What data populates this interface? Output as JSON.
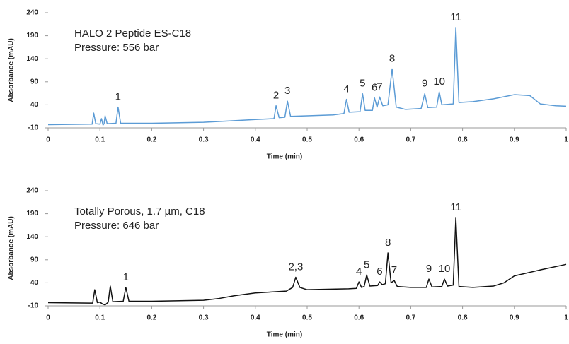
{
  "chart_data": [
    {
      "type": "line",
      "annotations": [
        "HALO 2 Peptide ES-C18",
        "Pressure: 556 bar"
      ],
      "x_label": "Time (min)",
      "y_label": "Absorbance (mAU)",
      "xlim": [
        0,
        1
      ],
      "ylim": [
        -10,
        240
      ],
      "xticks": [
        0,
        0.1,
        0.2,
        0.3,
        0.4,
        0.5,
        0.6,
        0.7,
        0.8,
        0.9,
        1
      ],
      "yticks": [
        -10,
        40,
        90,
        140,
        190,
        240
      ],
      "x": [
        0,
        0.08,
        0.085,
        0.088,
        0.092,
        0.1,
        0.103,
        0.106,
        0.108,
        0.11,
        0.114,
        0.131,
        0.135,
        0.14,
        0.2,
        0.3,
        0.35,
        0.4,
        0.436,
        0.44,
        0.446,
        0.457,
        0.462,
        0.468,
        0.5,
        0.55,
        0.571,
        0.576,
        0.581,
        0.602,
        0.607,
        0.612,
        0.626,
        0.63,
        0.635,
        0.64,
        0.646,
        0.656,
        0.664,
        0.672,
        0.69,
        0.72,
        0.727,
        0.733,
        0.75,
        0.755,
        0.76,
        0.782,
        0.787,
        0.793,
        0.82,
        0.86,
        0.9,
        0.93,
        0.95,
        0.98,
        1.0
      ],
      "series": [
        {
          "color": "#5b9bd5",
          "values": [
            -3,
            -2,
            -2,
            22,
            -1,
            -2,
            10,
            -4,
            -1,
            16,
            -1,
            0,
            35,
            0,
            0,
            2,
            5,
            8,
            10,
            38,
            12,
            13,
            48,
            15,
            16,
            18,
            21,
            52,
            24,
            25,
            64,
            28,
            28,
            55,
            35,
            57,
            38,
            40,
            118,
            35,
            30,
            32,
            64,
            34,
            35,
            68,
            40,
            42,
            208,
            45,
            47,
            53,
            62,
            60,
            42,
            38,
            37
          ]
        }
      ],
      "peaks": [
        {
          "label": "1",
          "x": 0.135,
          "y": 35
        },
        {
          "label": "2",
          "x": 0.44,
          "y": 38
        },
        {
          "label": "3",
          "x": 0.462,
          "y": 48
        },
        {
          "label": "4",
          "x": 0.576,
          "y": 52
        },
        {
          "label": "5",
          "x": 0.607,
          "y": 64
        },
        {
          "label": "6",
          "x": 0.63,
          "y": 55
        },
        {
          "label": "7",
          "x": 0.64,
          "y": 57
        },
        {
          "label": "8",
          "x": 0.664,
          "y": 118
        },
        {
          "label": "9",
          "x": 0.727,
          "y": 64
        },
        {
          "label": "10",
          "x": 0.755,
          "y": 68
        },
        {
          "label": "11",
          "x": 0.787,
          "y": 208
        }
      ]
    },
    {
      "type": "line",
      "annotations": [
        "Totally Porous, 1.7 µm, C18",
        "Pressure: 646 bar"
      ],
      "x_label": "Time (min)",
      "y_label": "Absorbance (mAU)",
      "xlim": [
        0,
        1
      ],
      "ylim": [
        -10,
        240
      ],
      "xticks": [
        0,
        0.1,
        0.2,
        0.3,
        0.4,
        0.5,
        0.6,
        0.7,
        0.8,
        0.9,
        1
      ],
      "yticks": [
        -10,
        40,
        90,
        140,
        190,
        240
      ],
      "x": [
        0,
        0.08,
        0.086,
        0.09,
        0.095,
        0.1,
        0.105,
        0.11,
        0.116,
        0.12,
        0.125,
        0.145,
        0.15,
        0.156,
        0.2,
        0.3,
        0.33,
        0.36,
        0.4,
        0.46,
        0.472,
        0.478,
        0.486,
        0.5,
        0.58,
        0.595,
        0.6,
        0.605,
        0.61,
        0.615,
        0.621,
        0.636,
        0.64,
        0.645,
        0.651,
        0.656,
        0.662,
        0.668,
        0.674,
        0.7,
        0.73,
        0.735,
        0.741,
        0.76,
        0.765,
        0.771,
        0.782,
        0.787,
        0.793,
        0.82,
        0.86,
        0.88,
        0.9,
        0.95,
        1.0
      ],
      "series": [
        {
          "color": "#111111",
          "values": [
            -3,
            -4,
            -4,
            25,
            -3,
            -2,
            -6,
            -8,
            -2,
            33,
            -1,
            0,
            30,
            0,
            0,
            2,
            6,
            12,
            18,
            22,
            30,
            52,
            30,
            25,
            27,
            28,
            42,
            30,
            32,
            57,
            33,
            34,
            42,
            36,
            38,
            105,
            40,
            45,
            32,
            30,
            30,
            48,
            31,
            32,
            48,
            33,
            35,
            182,
            32,
            30,
            33,
            40,
            55,
            68,
            80
          ]
        }
      ],
      "peaks": [
        {
          "label": "1",
          "x": 0.15,
          "y": 30
        },
        {
          "label": "2,3",
          "x": 0.478,
          "y": 52
        },
        {
          "label": "4",
          "x": 0.6,
          "y": 42
        },
        {
          "label": "5",
          "x": 0.615,
          "y": 57
        },
        {
          "label": "6",
          "x": 0.64,
          "y": 42
        },
        {
          "label": "8",
          "x": 0.656,
          "y": 105
        },
        {
          "label": "7",
          "x": 0.668,
          "y": 45
        },
        {
          "label": "9",
          "x": 0.735,
          "y": 48
        },
        {
          "label": "10",
          "x": 0.765,
          "y": 48
        },
        {
          "label": "11",
          "x": 0.787,
          "y": 182
        }
      ]
    }
  ]
}
